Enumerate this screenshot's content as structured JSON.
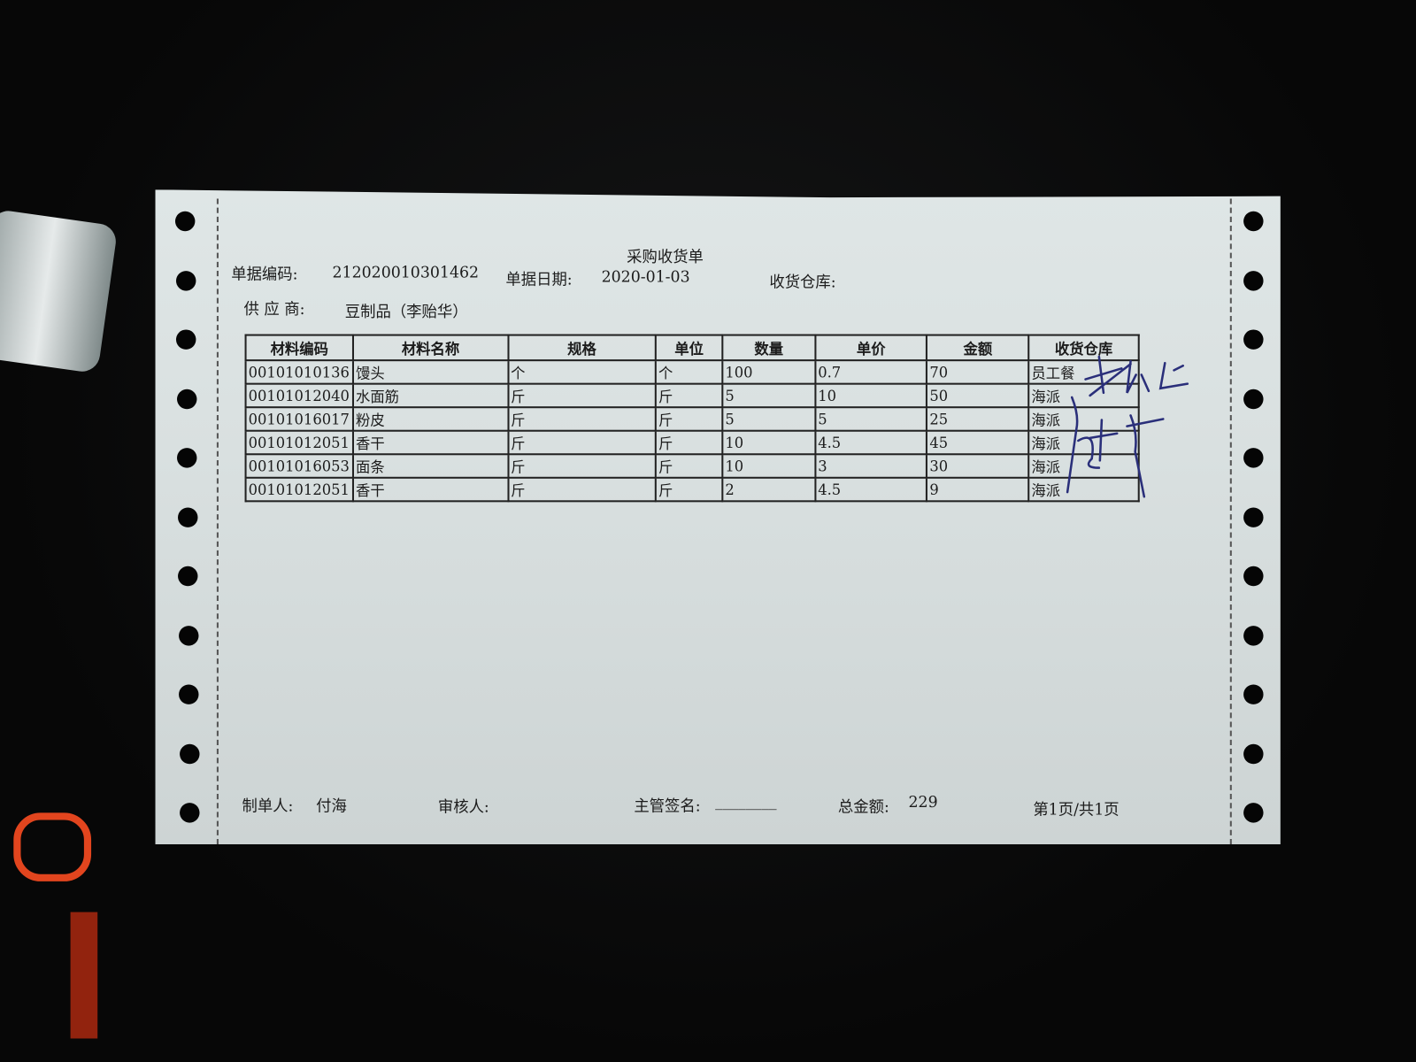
{
  "document": {
    "title": "采购收货单",
    "doc_no_label": "单据编码:",
    "doc_no": "212020010301462",
    "doc_date_label": "单据日期:",
    "doc_date": "2020-01-03",
    "warehouse_label": "收货仓库:",
    "supplier_label": "供 应 商:",
    "supplier": "豆制品（李贻华）"
  },
  "table": {
    "headers": [
      "材料编码",
      "材料名称",
      "规格",
      "单位",
      "数量",
      "单价",
      "金额",
      "收货仓库"
    ],
    "rows": [
      [
        "00101010136",
        "馒头",
        "个",
        "个",
        "100",
        "0.7",
        "70",
        "员工餐"
      ],
      [
        "00101012040",
        "水面筋",
        "斤",
        "斤",
        "5",
        "10",
        "50",
        "海派"
      ],
      [
        "00101016017",
        "粉皮",
        "斤",
        "斤",
        "5",
        "5",
        "25",
        "海派"
      ],
      [
        "00101012051",
        "香干",
        "斤",
        "斤",
        "10",
        "4.5",
        "45",
        "海派"
      ],
      [
        "00101016053",
        "面条",
        "斤",
        "斤",
        "10",
        "3",
        "30",
        "海派"
      ],
      [
        "00101012051",
        "香干",
        "斤",
        "斤",
        "2",
        "4.5",
        "9",
        "海派"
      ]
    ]
  },
  "footer": {
    "maker_label": "制单人:",
    "maker": "付海",
    "reviewer_label": "审核人:",
    "supervisor_label": "主管签名:",
    "supervisor_blank": "________",
    "total_label": "总金额:",
    "total": "229",
    "page": "第1页/共1页"
  },
  "colors": {
    "paper": "#dbe2e2",
    "ink": "#1c1c1c",
    "signature_ink": "#2a2f7a"
  }
}
